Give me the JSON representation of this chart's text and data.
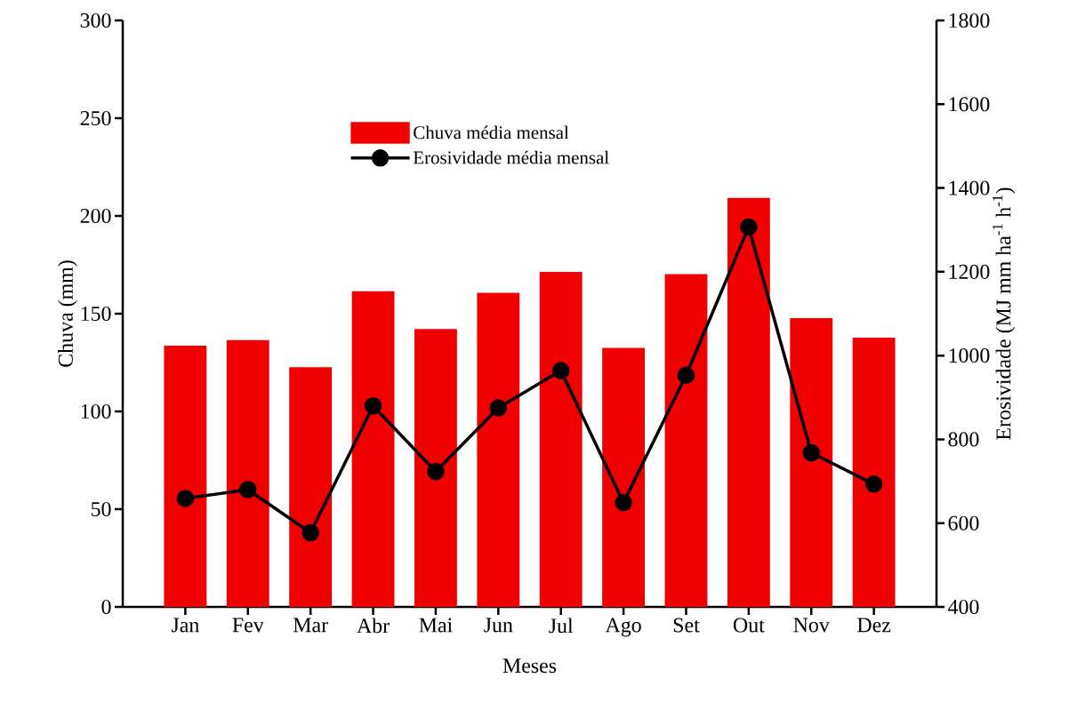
{
  "chart_data": {
    "type": "bar",
    "xlabel": "Meses",
    "ylabel": "Chuva (mm)",
    "y2label": "Erosividade (MJ mm ha$^{-1}$ h$^{-1}$)",
    "categories": [
      "Jan",
      "Fev",
      "Mar",
      "Abr",
      "Mai",
      "Jun",
      "Jul",
      "Ago",
      "Set",
      "Out",
      "Nov",
      "Dez"
    ],
    "series": [
      {
        "name": "Chuva média mensal",
        "color": "#f00000",
        "values": [
          133.6,
          136.5,
          122.6,
          161.5,
          142.2,
          160.7,
          171.4,
          132.5,
          170.2,
          209.2,
          147.7,
          137.7
        ]
      },
      {
        "name": "Erosividade média mensal",
        "type": "line",
        "axis": "y2",
        "color": "#000000",
        "marker": "circle",
        "line_style": "solid",
        "values": [
          659,
          680,
          577,
          880,
          723,
          875,
          964,
          649,
          953,
          1307,
          768,
          693
        ]
      }
    ],
    "ylim": [
      0,
      300
    ],
    "yticks": [
      0,
      50,
      100,
      150,
      200,
      250,
      300
    ],
    "y2lim": [
      400,
      1800
    ],
    "y2ticks": [
      400,
      600,
      800,
      1000,
      1200,
      1400,
      1600,
      1800
    ],
    "legend": "top",
    "grid": false
  }
}
